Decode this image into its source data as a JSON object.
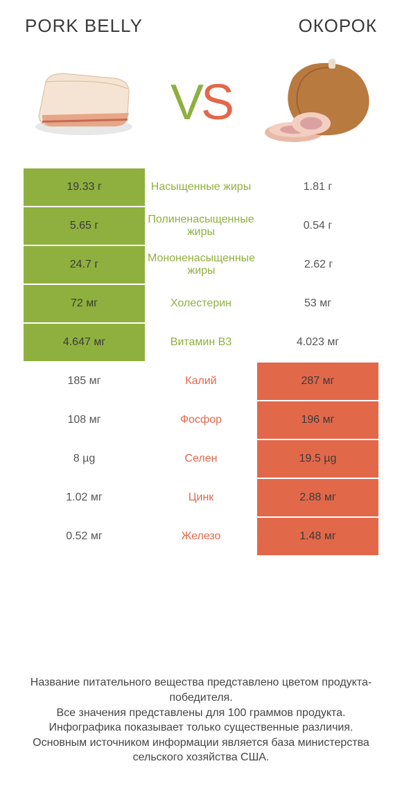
{
  "header": {
    "left_title": "Pork belly",
    "right_title": "Окорок"
  },
  "vs": {
    "v": "V",
    "s": "S"
  },
  "colors": {
    "green": "#8fb03e",
    "orange": "#e2684a",
    "background": "#ffffff",
    "text": "#3a3a3a"
  },
  "table": {
    "rows": [
      {
        "left": "19.33 г",
        "label": "Насыщенные жиры",
        "right": "1.81 г",
        "winner": "left"
      },
      {
        "left": "5.65 г",
        "label": "Полиненасыщенные жиры",
        "right": "0.54 г",
        "winner": "left"
      },
      {
        "left": "24.7 г",
        "label": "Мононенасыщенные жиры",
        "right": "2.62 г",
        "winner": "left"
      },
      {
        "left": "72 мг",
        "label": "Холестерин",
        "right": "53 мг",
        "winner": "left"
      },
      {
        "left": "4.647 мг",
        "label": "Витамин B3",
        "right": "4.023 мг",
        "winner": "left"
      },
      {
        "left": "185 мг",
        "label": "Калий",
        "right": "287 мг",
        "winner": "right"
      },
      {
        "left": "108 мг",
        "label": "Фосфор",
        "right": "196 мг",
        "winner": "right"
      },
      {
        "left": "8 µg",
        "label": "Селен",
        "right": "19.5 µg",
        "winner": "right"
      },
      {
        "left": "1.02 мг",
        "label": "Цинк",
        "right": "2.88 мг",
        "winner": "right"
      },
      {
        "left": "0.52 мг",
        "label": "Железо",
        "right": "1.48 мг",
        "winner": "right"
      }
    ]
  },
  "footer": {
    "line1": "Название питательного вещества представлено цветом продукта-победителя.",
    "line2": "Все значения представлены для 100 граммов продукта.",
    "line3": "Инфографика показывает только существенные различия.",
    "line4": "Основным источником информации является база министерства сельского хозяйства США."
  }
}
